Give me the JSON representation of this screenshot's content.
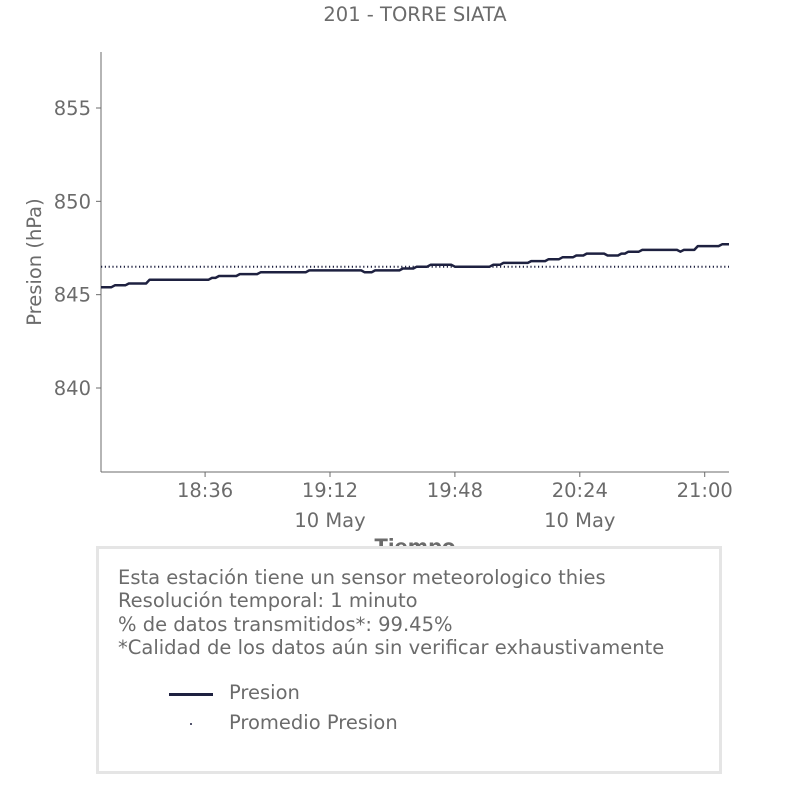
{
  "chart_data": {
    "type": "line",
    "title": "201 - TORRE SIATA",
    "xlabel": "Tiempo",
    "ylabel": "Presion (hPa)",
    "ylim": [
      835.5,
      858
    ],
    "xlim": [
      "18:06",
      "21:07"
    ],
    "y_ticks": [
      840,
      845,
      850,
      855
    ],
    "y_tick_labels": [
      "840",
      "845",
      "850",
      "855"
    ],
    "x_ticks": [
      "18:36",
      "19:12",
      "19:48",
      "20:24",
      "21:00"
    ],
    "x_tick_labels": [
      "18:36",
      "19:12",
      "19:48",
      "20:24",
      "21:00"
    ],
    "x_tick_sublabels": [
      "",
      "10 May",
      "",
      "10 May",
      ""
    ],
    "grid": false,
    "series": [
      {
        "name": "Presion",
        "style": "line",
        "color": "#1e2140",
        "points": [
          [
            "18:06",
            845.4
          ],
          [
            "18:09",
            845.4
          ],
          [
            "18:10",
            845.5
          ],
          [
            "18:13",
            845.5
          ],
          [
            "18:14",
            845.6
          ],
          [
            "18:19",
            845.6
          ],
          [
            "18:20",
            845.8
          ],
          [
            "18:37",
            845.8
          ],
          [
            "18:38",
            845.9
          ],
          [
            "18:39",
            845.9
          ],
          [
            "18:40",
            846.0
          ],
          [
            "18:45",
            846.0
          ],
          [
            "18:46",
            846.1
          ],
          [
            "18:51",
            846.1
          ],
          [
            "18:52",
            846.2
          ],
          [
            "19:05",
            846.2
          ],
          [
            "19:06",
            846.3
          ],
          [
            "19:21",
            846.3
          ],
          [
            "19:22",
            846.2
          ],
          [
            "19:24",
            846.2
          ],
          [
            "19:25",
            846.3
          ],
          [
            "19:32",
            846.3
          ],
          [
            "19:33",
            846.4
          ],
          [
            "19:36",
            846.4
          ],
          [
            "19:37",
            846.5
          ],
          [
            "19:40",
            846.5
          ],
          [
            "19:41",
            846.6
          ],
          [
            "19:47",
            846.6
          ],
          [
            "19:48",
            846.5
          ],
          [
            "19:58",
            846.5
          ],
          [
            "19:59",
            846.6
          ],
          [
            "20:01",
            846.6
          ],
          [
            "20:02",
            846.7
          ],
          [
            "20:09",
            846.7
          ],
          [
            "20:10",
            846.8
          ],
          [
            "20:14",
            846.8
          ],
          [
            "20:15",
            846.9
          ],
          [
            "20:18",
            846.9
          ],
          [
            "20:19",
            847.0
          ],
          [
            "20:22",
            847.0
          ],
          [
            "20:23",
            847.1
          ],
          [
            "20:25",
            847.1
          ],
          [
            "20:26",
            847.2
          ],
          [
            "20:31",
            847.2
          ],
          [
            "20:32",
            847.1
          ],
          [
            "20:35",
            847.1
          ],
          [
            "20:36",
            847.2
          ],
          [
            "20:37",
            847.2
          ],
          [
            "20:38",
            847.3
          ],
          [
            "20:41",
            847.3
          ],
          [
            "20:42",
            847.4
          ],
          [
            "20:52",
            847.4
          ],
          [
            "20:53",
            847.3
          ],
          [
            "20:54",
            847.4
          ],
          [
            "20:57",
            847.4
          ],
          [
            "20:58",
            847.6
          ],
          [
            "21:04",
            847.6
          ],
          [
            "21:05",
            847.7
          ],
          [
            "21:07",
            847.7
          ]
        ]
      },
      {
        "name": "Promedio Presion",
        "style": "dotted",
        "color": "#1e2140",
        "points": [
          [
            "18:06",
            846.5
          ],
          [
            "21:07",
            846.5
          ]
        ]
      }
    ]
  },
  "info_box": {
    "lines": [
      "Esta estación tiene un sensor meteorologico thies",
      "Resolución temporal: 1 minuto",
      "% de datos transmitidos*: 99.45%",
      "*Calidad de los datos aún sin verificar exhaustivamente"
    ]
  },
  "legend": {
    "items": [
      {
        "label": "Presion",
        "swatch": "line"
      },
      {
        "label": "Promedio Presion",
        "swatch": "dot"
      }
    ]
  },
  "colors": {
    "series": "#1e2140",
    "text": "#6b6b6b",
    "axis": "#6b6b6b",
    "box_border": "#e5e5e5"
  }
}
